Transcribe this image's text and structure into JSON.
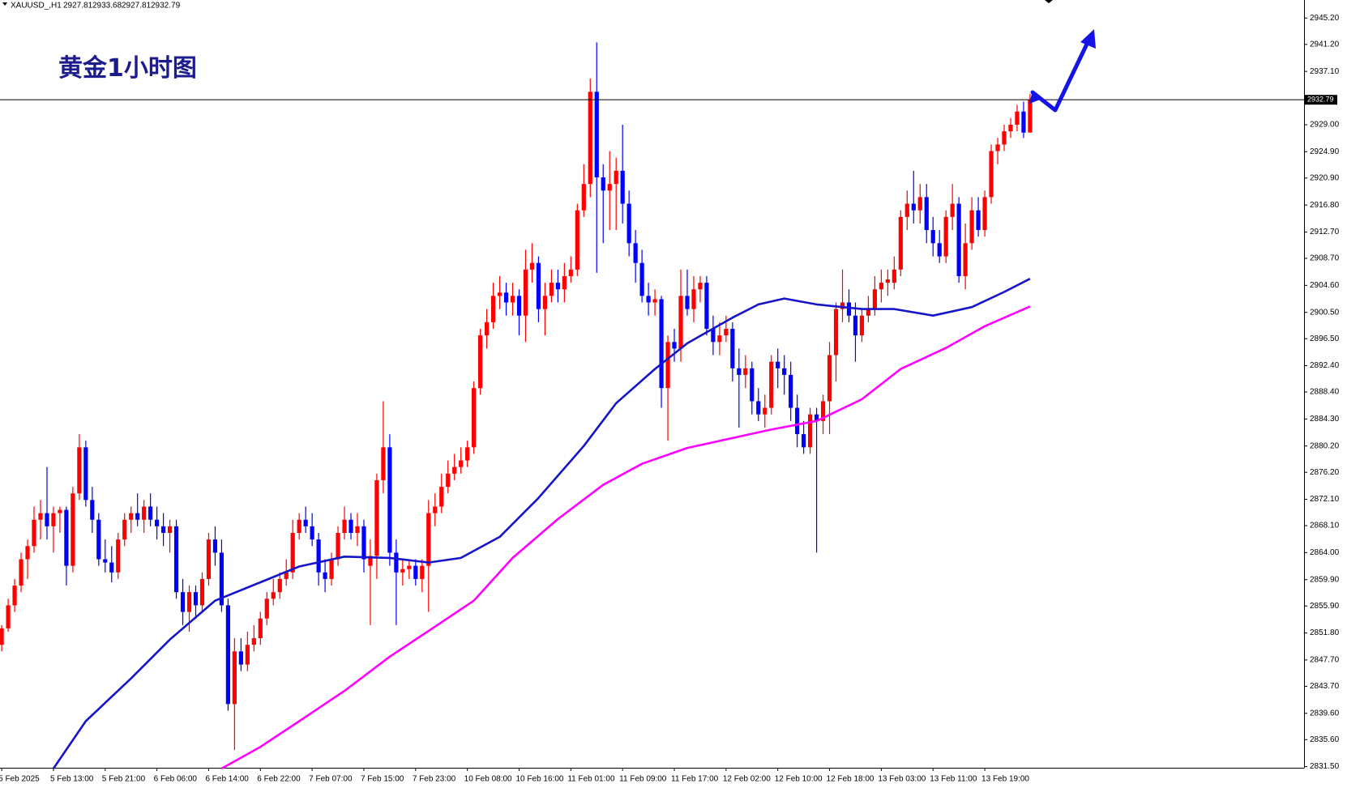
{
  "chart_data": {
    "type": "candlestick",
    "symbol": "XAUUSD_,H1",
    "title": "黄金1小时图",
    "up_color": "#ff0000",
    "down_color": "#0000ff",
    "categories": [
      "5 Feb 2025",
      null,
      null,
      null,
      null,
      null,
      null,
      null,
      "5 Feb 13:00",
      null,
      null,
      null,
      null,
      null,
      null,
      null,
      "5 Feb 21:00",
      null,
      null,
      null,
      null,
      null,
      null,
      null,
      "6 Feb 06:00",
      null,
      null,
      null,
      null,
      null,
      null,
      null,
      "6 Feb 14:00",
      null,
      null,
      null,
      null,
      null,
      null,
      null,
      "6 Feb 22:00",
      null,
      null,
      null,
      null,
      null,
      null,
      null,
      "7 Feb 07:00",
      null,
      null,
      null,
      null,
      null,
      null,
      null,
      "7 Feb 15:00",
      null,
      null,
      null,
      null,
      null,
      null,
      null,
      "7 Feb 23:00",
      null,
      null,
      null,
      null,
      null,
      null,
      null,
      "10 Feb 08:00",
      null,
      null,
      null,
      null,
      null,
      null,
      null,
      "10 Feb 16:00",
      null,
      null,
      null,
      null,
      null,
      null,
      null,
      "11 Feb 01:00",
      null,
      null,
      null,
      null,
      null,
      null,
      null,
      "11 Feb 09:00",
      null,
      null,
      null,
      null,
      null,
      null,
      null,
      "11 Feb 17:00",
      null,
      null,
      null,
      null,
      null,
      null,
      null,
      "12 Feb 02:00",
      null,
      null,
      null,
      null,
      null,
      null,
      null,
      "12 Feb 10:00",
      null,
      null,
      null,
      null,
      null,
      null,
      null,
      "12 Feb 18:00",
      null,
      null,
      null,
      null,
      null,
      null,
      null,
      "13 Feb 03:00",
      null,
      null,
      null,
      null,
      null,
      null,
      null,
      "13 Feb 11:00",
      null,
      null,
      null,
      null,
      null,
      null,
      null,
      "13 Feb 19:00",
      null,
      null,
      null,
      null,
      null,
      null,
      null
    ],
    "ohlc": [
      [
        2850,
        2853,
        2849,
        2852.5
      ],
      [
        2852.5,
        2857,
        2852,
        2856
      ],
      [
        2856,
        2860,
        2855,
        2859
      ],
      [
        2859,
        2864,
        2858,
        2863
      ],
      [
        2863,
        2866,
        2860,
        2865
      ],
      [
        2865,
        2871,
        2864,
        2869
      ],
      [
        2869,
        2872,
        2866,
        2870
      ],
      [
        2870,
        2877,
        2866,
        2868
      ],
      [
        2868,
        2871,
        2864,
        2870
      ],
      [
        2870,
        2871,
        2867,
        2870.5
      ],
      [
        2870.5,
        2871,
        2859,
        2862
      ],
      [
        2862,
        2874,
        2861,
        2873
      ],
      [
        2873,
        2882,
        2872,
        2880
      ],
      [
        2880,
        2881,
        2871,
        2872
      ],
      [
        2872,
        2874,
        2867,
        2869
      ],
      [
        2869,
        2870,
        2862,
        2863
      ],
      [
        2863,
        2866,
        2861,
        2862.5
      ],
      [
        2862.5,
        2865,
        2859.5,
        2861
      ],
      [
        2861,
        2867,
        2860,
        2866
      ],
      [
        2866,
        2870,
        2865,
        2869
      ],
      [
        2869,
        2871,
        2867,
        2870
      ],
      [
        2870,
        2873,
        2868,
        2869
      ],
      [
        2869,
        2872,
        2867,
        2871
      ],
      [
        2871,
        2873,
        2868,
        2869
      ],
      [
        2869,
        2871,
        2866,
        2868
      ],
      [
        2868,
        2870,
        2865,
        2867
      ],
      [
        2867,
        2869,
        2864,
        2868
      ],
      [
        2868,
        2869,
        2857,
        2858
      ],
      [
        2858,
        2860,
        2853,
        2855
      ],
      [
        2855,
        2859,
        2852,
        2858
      ],
      [
        2858,
        2859,
        2854,
        2856
      ],
      [
        2856,
        2861,
        2855,
        2860
      ],
      [
        2860,
        2867,
        2859,
        2866
      ],
      [
        2866,
        2868,
        2862,
        2864
      ],
      [
        2864,
        2866,
        2855,
        2856
      ],
      [
        2856,
        2857,
        2840,
        2841
      ],
      [
        2841,
        2851,
        2834,
        2849
      ],
      [
        2849,
        2851,
        2846,
        2847
      ],
      [
        2847,
        2852,
        2846,
        2850
      ],
      [
        2850,
        2853,
        2849,
        2851
      ],
      [
        2851,
        2855,
        2850,
        2854
      ],
      [
        2854,
        2858,
        2853,
        2857
      ],
      [
        2857,
        2860,
        2856,
        2858
      ],
      [
        2858,
        2861,
        2857,
        2860
      ],
      [
        2860,
        2863,
        2859,
        2861
      ],
      [
        2861,
        2869,
        2860,
        2867
      ],
      [
        2867,
        2870,
        2866,
        2869
      ],
      [
        2869,
        2871,
        2867,
        2868
      ],
      [
        2868,
        2870,
        2865,
        2866
      ],
      [
        2866,
        2867,
        2859,
        2861
      ],
      [
        2861,
        2863,
        2858,
        2860
      ],
      [
        2860,
        2864,
        2859,
        2863
      ],
      [
        2863,
        2868,
        2862,
        2867
      ],
      [
        2867,
        2871,
        2866,
        2869
      ],
      [
        2869,
        2870,
        2866,
        2867
      ],
      [
        2867,
        2870,
        2865,
        2868
      ],
      [
        2868,
        2869,
        2861,
        2863
      ],
      [
        2862,
        2866,
        2853,
        2863.5
      ],
      [
        2863.5,
        2876,
        2860,
        2875
      ],
      [
        2875,
        2887,
        2873,
        2880
      ],
      [
        2880,
        2882,
        2862,
        2864
      ],
      [
        2864,
        2866,
        2853,
        2861
      ],
      [
        2861,
        2863,
        2859,
        2861.5
      ],
      [
        2861.5,
        2863,
        2860,
        2862
      ],
      [
        2862,
        2863,
        2859,
        2860
      ],
      [
        2860,
        2863,
        2858,
        2862
      ],
      [
        2862,
        2872,
        2855,
        2870
      ],
      [
        2870,
        2873,
        2868,
        2871
      ],
      [
        2871,
        2876,
        2870,
        2874
      ],
      [
        2874,
        2878,
        2873,
        2876
      ],
      [
        2876,
        2879,
        2875,
        2877
      ],
      [
        2877,
        2880,
        2876,
        2878
      ],
      [
        2878,
        2881,
        2877,
        2880
      ],
      [
        2880,
        2890,
        2879,
        2889
      ],
      [
        2889,
        2898,
        2888,
        2897
      ],
      [
        2897,
        2901,
        2895,
        2899
      ],
      [
        2899,
        2905,
        2898,
        2903
      ],
      [
        2903,
        2906,
        2901,
        2903.5
      ],
      [
        2903.5,
        2905,
        2900,
        2902
      ],
      [
        2902,
        2905,
        2900,
        2903
      ],
      [
        2903,
        2904,
        2897,
        2900
      ],
      [
        2900,
        2910,
        2896,
        2907
      ],
      [
        2907,
        2911,
        2905,
        2908
      ],
      [
        2908,
        2909,
        2899,
        2901
      ],
      [
        2901,
        2905,
        2897,
        2903
      ],
      [
        2903,
        2907,
        2902,
        2905
      ],
      [
        2905,
        2907,
        2902,
        2904
      ],
      [
        2904,
        2908,
        2902,
        2906
      ],
      [
        2906,
        2909,
        2905,
        2907
      ],
      [
        2907,
        2917,
        2906,
        2916
      ],
      [
        2916,
        2923,
        2915,
        2920
      ],
      [
        2920,
        2936,
        2918,
        2934
      ],
      [
        2934,
        2941.5,
        2906.5,
        2921
      ],
      [
        2921,
        2923,
        2911,
        2919
      ],
      [
        2919,
        2925,
        2913,
        2920
      ],
      [
        2920,
        2924,
        2913,
        2922
      ],
      [
        2922,
        2929,
        2914,
        2917
      ],
      [
        2917,
        2919,
        2909,
        2911
      ],
      [
        2911,
        2913,
        2905,
        2908
      ],
      [
        2908,
        2910,
        2902,
        2903
      ],
      [
        2903,
        2905,
        2900,
        2902
      ],
      [
        2902,
        2904,
        2900,
        2902.5
      ],
      [
        2902.5,
        2903,
        2886,
        2889
      ],
      [
        2889,
        2897,
        2881,
        2896
      ],
      [
        2896,
        2898,
        2893,
        2895
      ],
      [
        2895,
        2907,
        2893,
        2903
      ],
      [
        2903,
        2907,
        2900,
        2901
      ],
      [
        2901,
        2906,
        2899,
        2904
      ],
      [
        2904,
        2906,
        2902,
        2905
      ],
      [
        2905,
        2906,
        2897,
        2898
      ],
      [
        2898,
        2900,
        2894,
        2896
      ],
      [
        2896,
        2899,
        2894,
        2897
      ],
      [
        2897,
        2900,
        2896,
        2898
      ],
      [
        2898,
        2899,
        2890,
        2892
      ],
      [
        2892,
        2895,
        2883,
        2891
      ],
      [
        2891,
        2894,
        2889,
        2892
      ],
      [
        2892,
        2893,
        2885,
        2887
      ],
      [
        2887,
        2889,
        2884,
        2885
      ],
      [
        2885,
        2888,
        2883,
        2886
      ],
      [
        2886,
        2894,
        2885,
        2893
      ],
      [
        2893,
        2895,
        2889,
        2892
      ],
      [
        2892,
        2894,
        2888,
        2891
      ],
      [
        2891,
        2893,
        2884,
        2886
      ],
      [
        2886,
        2888,
        2880,
        2882
      ],
      [
        2882,
        2884,
        2879,
        2880
      ],
      [
        2880,
        2886,
        2879,
        2885
      ],
      [
        2885,
        2886,
        2864,
        2884
      ],
      [
        2884,
        2888,
        2882,
        2887
      ],
      [
        2887,
        2896,
        2882,
        2894
      ],
      [
        2894,
        2902,
        2890,
        2901
      ],
      [
        2901,
        2907,
        2899,
        2902
      ],
      [
        2902,
        2904,
        2899,
        2900
      ],
      [
        2900,
        2902,
        2893,
        2897
      ],
      [
        2897,
        2901,
        2896,
        2900
      ],
      [
        2900,
        2903,
        2899,
        2901
      ],
      [
        2901,
        2906,
        2900,
        2904
      ],
      [
        2904,
        2907,
        2902,
        2905
      ],
      [
        2905,
        2907,
        2903,
        2905.5
      ],
      [
        2905,
        2909,
        2904,
        2907
      ],
      [
        2907,
        2916,
        2906,
        2915
      ],
      [
        2915,
        2919,
        2913,
        2917
      ],
      [
        2917,
        2922,
        2914,
        2916
      ],
      [
        2916,
        2920,
        2914,
        2918
      ],
      [
        2918,
        2920,
        2911,
        2913
      ],
      [
        2913,
        2915,
        2909,
        2911
      ],
      [
        2911,
        2913,
        2908,
        2909
      ],
      [
        2909,
        2916,
        2908,
        2915
      ],
      [
        2915,
        2920,
        2913,
        2917
      ],
      [
        2917,
        2918,
        2905,
        2906
      ],
      [
        2906,
        2914,
        2904,
        2911
      ],
      [
        2911,
        2918,
        2910,
        2916
      ],
      [
        2916,
        2918,
        2912,
        2913
      ],
      [
        2913,
        2919,
        2912,
        2918
      ],
      [
        2918,
        2926,
        2917,
        2925
      ],
      [
        2925,
        2927,
        2923,
        2926
      ],
      [
        2926,
        2929,
        2925,
        2928
      ],
      [
        2928,
        2930,
        2927,
        2929
      ],
      [
        2929,
        2932,
        2928,
        2931
      ],
      [
        2931,
        2932.5,
        2927,
        2927.8
      ],
      [
        2927.81,
        2933.68,
        2927.81,
        2932.79
      ]
    ],
    "lines": [
      {
        "color": "#1414c8",
        "x": [
          8,
          13,
          20,
          26,
          33,
          40,
          46,
          53,
          60,
          66,
          71,
          77,
          83,
          90,
          95,
          101,
          106,
          113,
          117,
          121,
          126,
          133,
          138,
          144,
          150,
          155,
          159
        ],
        "values": [
          2831.2,
          2838.4,
          2844.9,
          2850.8,
          2856.7,
          2859.5,
          2861.9,
          2863.4,
          2863.2,
          2862.5,
          2863.2,
          2866.4,
          2872.3,
          2880.2,
          2886.7,
          2891.9,
          2895.8,
          2899.7,
          2901.7,
          2902.6,
          2901.7,
          2901.0,
          2901.0,
          2900.0,
          2901.3,
          2903.6,
          2905.6
        ]
      },
      {
        "color": "#ff00ff",
        "x": [
          34,
          40,
          46,
          53,
          60,
          66,
          73,
          79,
          86,
          93,
          99,
          106,
          113,
          119,
          126,
          133,
          139,
          146,
          152,
          159
        ],
        "values": [
          2831.2,
          2834.5,
          2838.4,
          2843.0,
          2848.2,
          2852.1,
          2856.7,
          2863.2,
          2869.1,
          2874.3,
          2877.5,
          2879.9,
          2881.4,
          2882.7,
          2884.0,
          2887.3,
          2891.9,
          2895.1,
          2898.4,
          2901.4
        ]
      }
    ],
    "ylim": [
      2831.5,
      2945.2
    ],
    "yticks": [
      {
        "value": 2831.5,
        "label": "2831.50"
      },
      {
        "value": 2835.6,
        "label": "2835.60"
      },
      {
        "value": 2839.6,
        "label": "2839.60"
      },
      {
        "value": 2843.7,
        "label": "2843.70"
      },
      {
        "value": 2847.7,
        "label": "2847.70"
      },
      {
        "value": 2851.8,
        "label": "2851.80"
      },
      {
        "value": 2855.9,
        "label": "2855.90"
      },
      {
        "value": 2859.9,
        "label": "2859.90"
      },
      {
        "value": 2864,
        "label": "2864.00"
      },
      {
        "value": 2868.1,
        "label": "2868.10"
      },
      {
        "value": 2872.1,
        "label": "2872.10"
      },
      {
        "value": 2876.2,
        "label": "2876.20"
      },
      {
        "value": 2880.2,
        "label": "2880.20"
      },
      {
        "value": 2884.3,
        "label": "2884.30"
      },
      {
        "value": 2888.4,
        "label": "2888.40"
      },
      {
        "value": 2892.4,
        "label": "2892.40"
      },
      {
        "value": 2896.5,
        "label": "2896.50"
      },
      {
        "value": 2900.5,
        "label": "2900.50"
      },
      {
        "value": 2904.6,
        "label": "2904.60"
      },
      {
        "value": 2908.7,
        "label": "2908.70"
      },
      {
        "value": 2912.7,
        "label": "2912.70"
      },
      {
        "value": 2916.8,
        "label": "2916.80"
      },
      {
        "value": 2920.9,
        "label": "2920.90"
      },
      {
        "value": 2924.9,
        "label": "2924.90"
      },
      {
        "value": 2929,
        "label": "2929.00"
      },
      {
        "value": 2937.1,
        "label": "2937.10"
      },
      {
        "value": 2941.2,
        "label": "2941.20"
      },
      {
        "value": 2945.2,
        "label": "2945.20"
      }
    ],
    "grid": false
  }
}
